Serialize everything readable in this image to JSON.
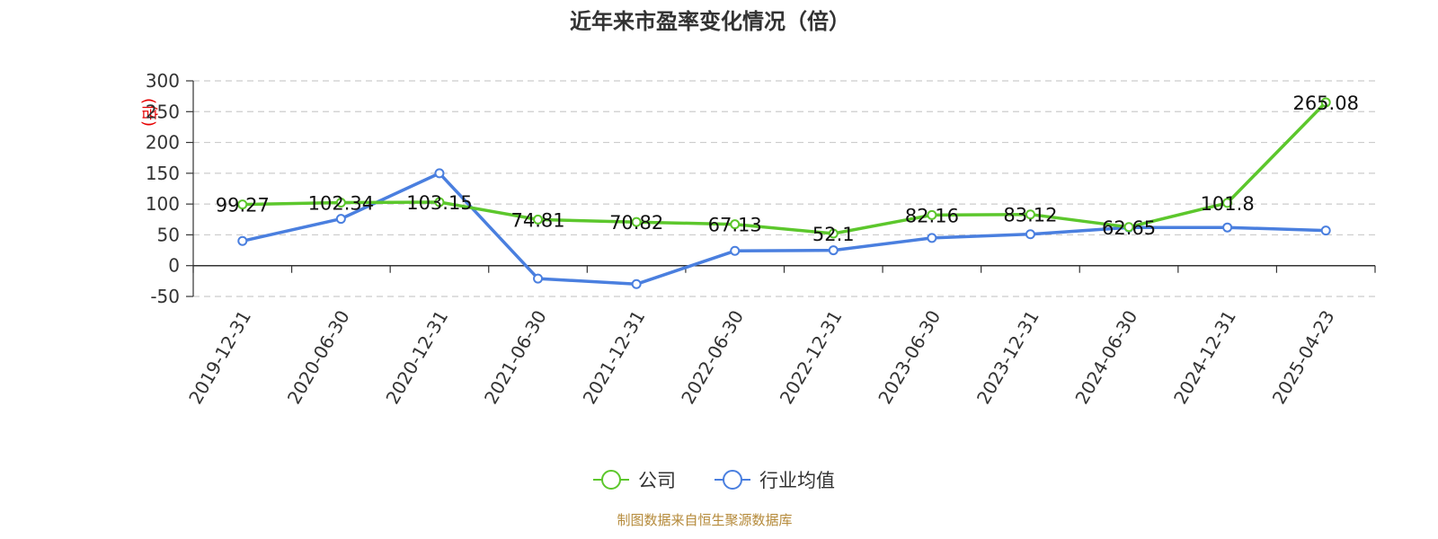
{
  "chart_data": {
    "type": "line",
    "title": "近年来市盈率变化情况（倍）",
    "ylabel": "(倍)",
    "categories": [
      "2019-12-31",
      "2020-06-30",
      "2020-12-31",
      "2021-06-30",
      "2021-12-31",
      "2022-06-30",
      "2022-12-31",
      "2023-06-30",
      "2023-12-31",
      "2024-06-30",
      "2024-12-31",
      "2025-04-23"
    ],
    "ylim": [
      -50,
      300
    ],
    "yticks": [
      300,
      250,
      200,
      150,
      100,
      50,
      0,
      -50
    ],
    "grid": true,
    "legend_position": "bottom",
    "series": [
      {
        "name": "公司",
        "color": "#5cc72c",
        "values": [
          99.27,
          102.34,
          103.15,
          74.81,
          70.82,
          67.13,
          52.1,
          82.16,
          83.12,
          62.65,
          101.8,
          265.08
        ],
        "labels": [
          "99.27",
          "102.34",
          "103.15",
          "74.81",
          "70.82",
          "67.13",
          "52.1",
          "82.16",
          "83.12",
          "62.65",
          "101.8",
          "265.08"
        ]
      },
      {
        "name": "行业均值",
        "color": "#4a7fdf",
        "values": [
          40,
          76,
          150,
          -21,
          -30,
          24,
          25,
          45,
          51,
          62,
          62,
          57
        ]
      }
    ]
  },
  "footer": {
    "source": "制图数据来自恒生聚源数据库"
  }
}
